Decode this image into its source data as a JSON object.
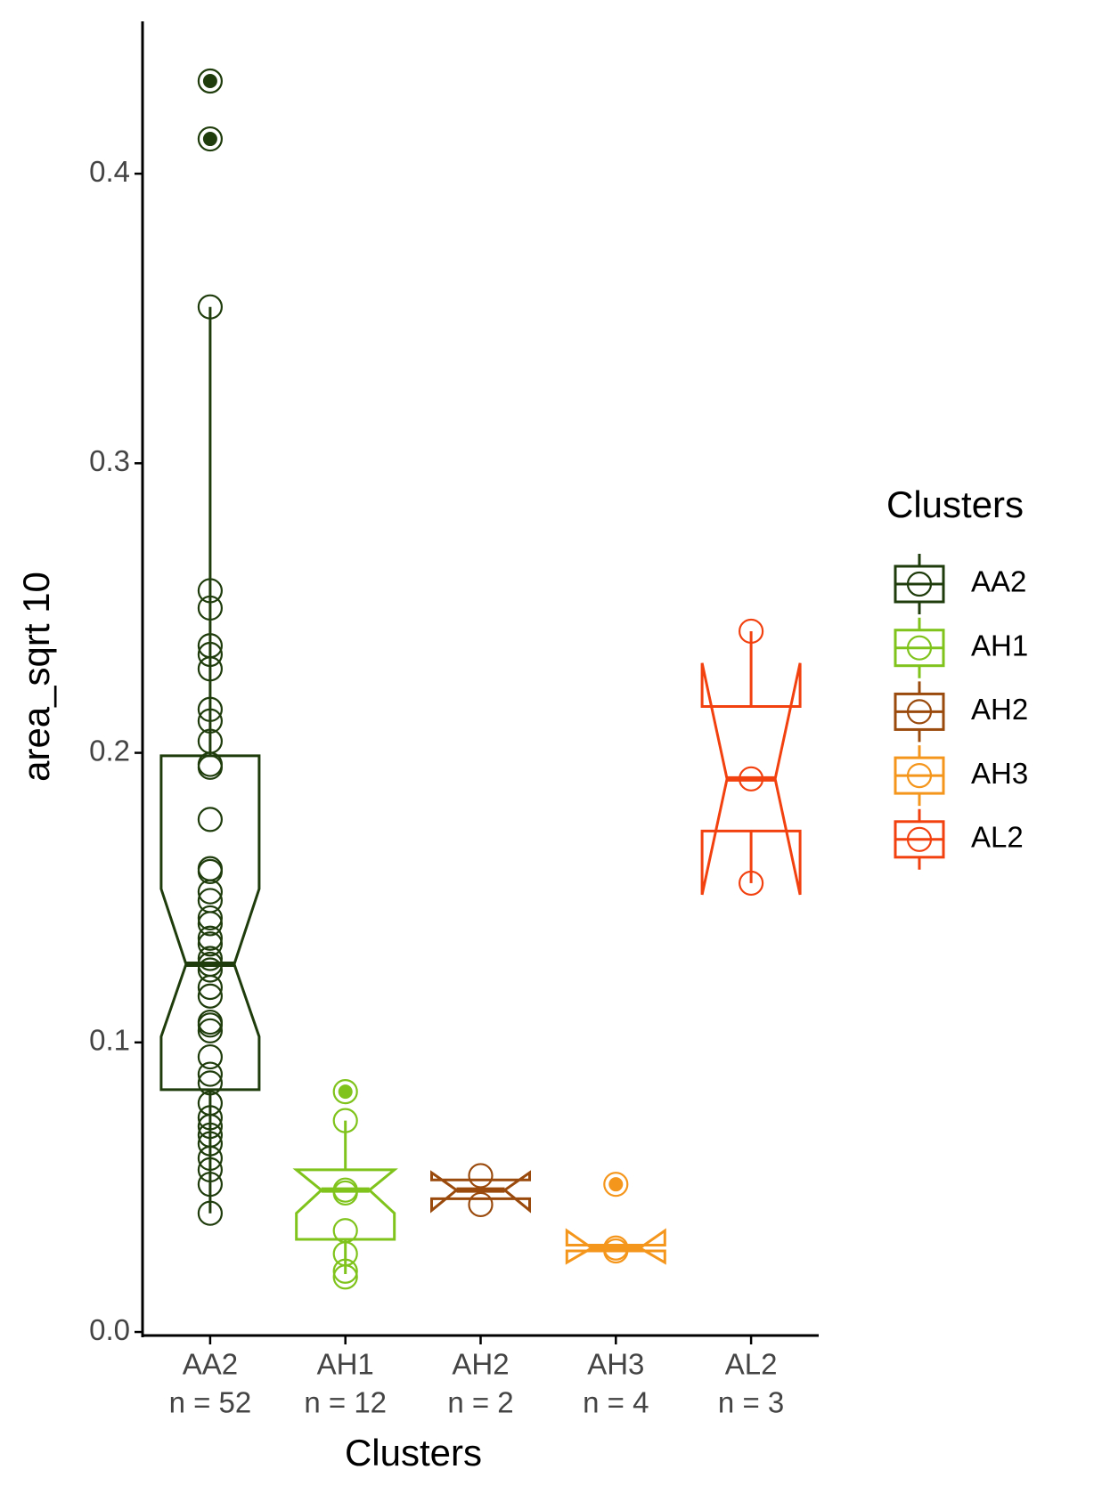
{
  "chart_data": {
    "type": "boxplot",
    "x_label": "Clusters",
    "y_label": "area_sqrt 10",
    "legend_title": "Clusters",
    "legend_position": "right",
    "categories": [
      "AA2",
      "AH1",
      "AH2",
      "AH3",
      "AL2"
    ],
    "count_labels": [
      "n = 52",
      "n = 12",
      "n = 2",
      "n = 4",
      "n = 3"
    ],
    "ylim": [
      -0.001,
      0.4526
    ],
    "yticks": [
      {
        "value": 0,
        "label": "0.0"
      },
      0.1,
      0.2,
      0.3,
      0.4
    ],
    "series": [
      {
        "name": "AA2",
        "color": "#1f3d0c",
        "box": {
          "whisker_low": 0.041,
          "q1": 0.0837,
          "median": 0.127,
          "q3": 0.199,
          "whisker_high": 0.354,
          "notch_low": 0.102,
          "notch_high": 0.153
        },
        "outliers": [
          0.432,
          0.412
        ],
        "points": [
          0.432,
          0.412,
          0.354,
          0.256,
          0.25,
          0.237,
          0.234,
          0.229,
          0.215,
          0.211,
          0.204,
          0.196,
          0.195,
          0.177,
          0.16,
          0.159,
          0.152,
          0.149,
          0.143,
          0.141,
          0.136,
          0.134,
          0.129,
          0.127,
          0.125,
          0.119,
          0.116,
          0.107,
          0.106,
          0.104,
          0.095,
          0.089,
          0.086,
          0.079,
          0.074,
          0.071,
          0.068,
          0.065,
          0.06,
          0.056,
          0.051,
          0.041
        ]
      },
      {
        "name": "AH1",
        "color": "#7fc31c",
        "box": {
          "whisker_low": 0.02,
          "q1": 0.032,
          "median": 0.049,
          "q3": 0.056,
          "whisker_high": 0.073,
          "notch_low": 0.041,
          "notch_high": 0.056
        },
        "outliers": [
          0.083
        ],
        "points": [
          0.083,
          0.073,
          0.049,
          0.048,
          0.035,
          0.027,
          0.021,
          0.019
        ]
      },
      {
        "name": "AH2",
        "color": "#9a4a0c",
        "box": {
          "q1": 0.046,
          "median": 0.049,
          "q3": 0.0525,
          "notch_low": 0.042,
          "notch_high": 0.055
        },
        "outliers": [],
        "points": [
          0.054,
          0.044
        ]
      },
      {
        "name": "AH3",
        "color": "#f5961c",
        "box": {
          "q1": 0.028,
          "median": 0.029,
          "q3": 0.03,
          "notch_low": 0.024,
          "notch_high": 0.035
        },
        "outliers": [
          0.051
        ],
        "points": [
          0.051,
          0.029,
          0.028
        ]
      },
      {
        "name": "AL2",
        "color": "#f2400f",
        "box": {
          "whisker_low": 0.155,
          "q1": 0.173,
          "median": 0.191,
          "q3": 0.216,
          "whisker_high": 0.242,
          "notch_low": 0.151,
          "notch_high": 0.231
        },
        "outliers": [],
        "points": [
          0.242,
          0.191,
          0.155
        ]
      }
    ]
  }
}
